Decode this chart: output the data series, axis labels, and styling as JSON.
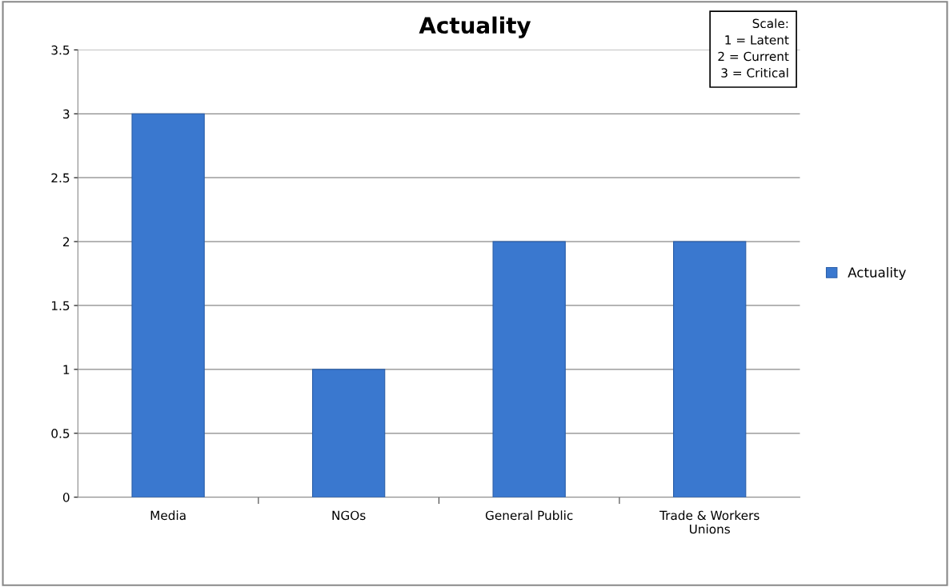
{
  "chart_data": {
    "type": "bar",
    "title": "Actuality",
    "categories": [
      "Media",
      "NGOs",
      "General Public",
      "Trade & Workers\nUnions"
    ],
    "series": [
      {
        "name": "Actuality",
        "color": "#3a78cf",
        "values": [
          3,
          1,
          2,
          2
        ]
      }
    ],
    "ylim": [
      0,
      3.5
    ],
    "yticks": [
      0,
      0.5,
      1,
      1.5,
      2,
      2.5,
      3,
      3.5
    ],
    "grid": "y",
    "legend": "right",
    "annotations": [
      "Scale:\n1 = Latent\n2 = Current\n3 = Critical"
    ]
  }
}
